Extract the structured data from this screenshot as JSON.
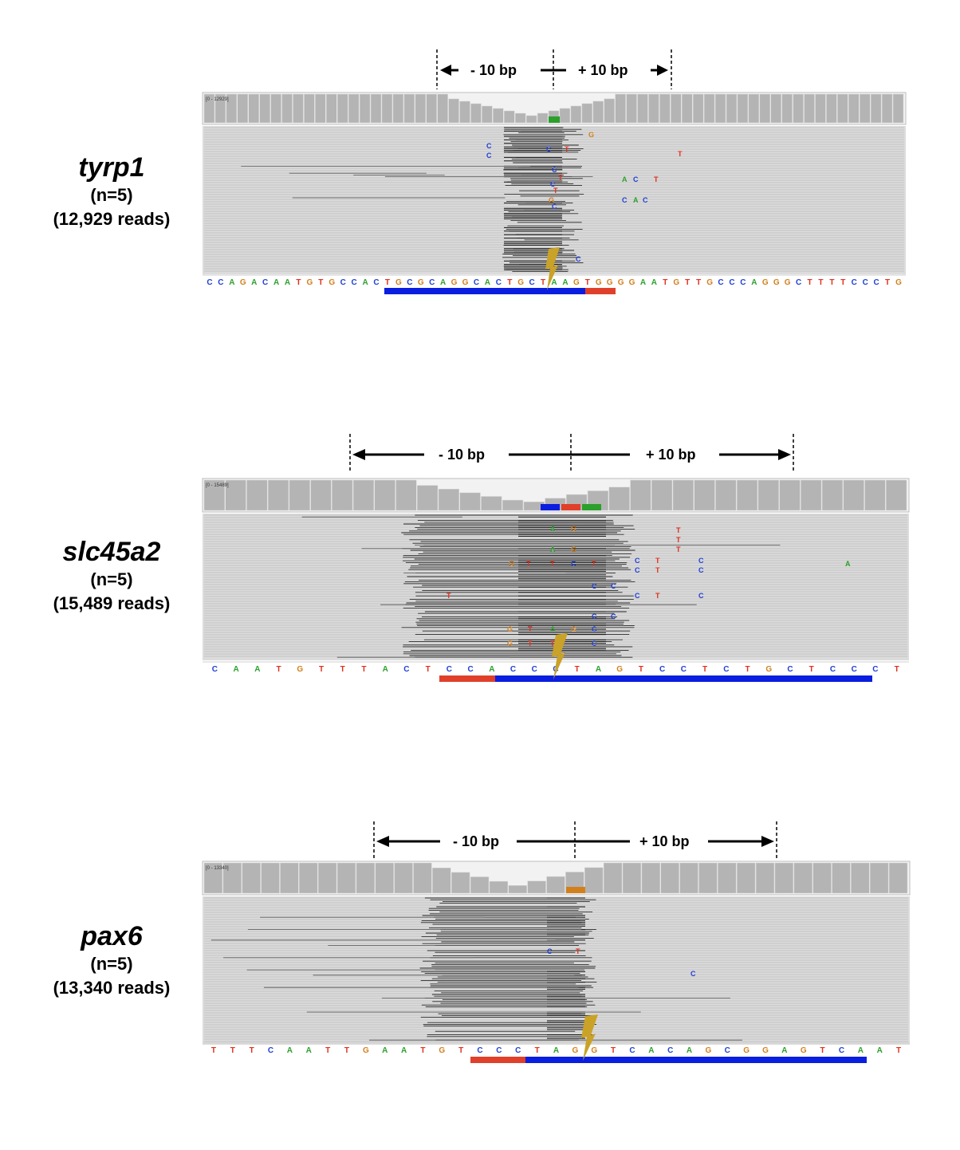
{
  "panels": [
    {
      "gene": "tyrp1",
      "n_label": "(n=5)",
      "reads_label": "(12,929 reads)",
      "left_label": "- 10 bp",
      "right_label": "+ 10 bp",
      "range_label": "[0 - 12929]",
      "sequence": "CCAGACAATGTGCCACTGCGCAGGCACTGCTAAGTGGGGAATGTTGCCCAGGGCTTTTCCCTG"
    },
    {
      "gene": "slc45a2",
      "n_label": "(n=5)",
      "reads_label": "(15,489 reads)",
      "left_label": "- 10 bp",
      "right_label": "+ 10 bp",
      "range_label": "[0 - 15489]",
      "sequence": "CAATGTTTACTCCACCCTAGTCCTCTGCTCCCT"
    },
    {
      "gene": "pax6",
      "n_label": "(n=5)",
      "reads_label": "(13,340 reads)",
      "left_label": "- 10 bp",
      "right_label": "+ 10 bp",
      "range_label": "[0 - 13340]",
      "sequence": "TTTCAATTGAATGTCCCTAGGTCACAGCGGAGTCAAT"
    }
  ],
  "colors": {
    "A": "#2ca02c",
    "C": "#1f3fd6",
    "G": "#d2801e",
    "T": "#e0301e",
    "read": "#c8c8c8",
    "read_dark": "#2a2a2a",
    "coverage": "#b4b4b4",
    "guide_blue": "#0a1ee0",
    "pam_red": "#e0402a",
    "cut": "#c9a227"
  }
}
